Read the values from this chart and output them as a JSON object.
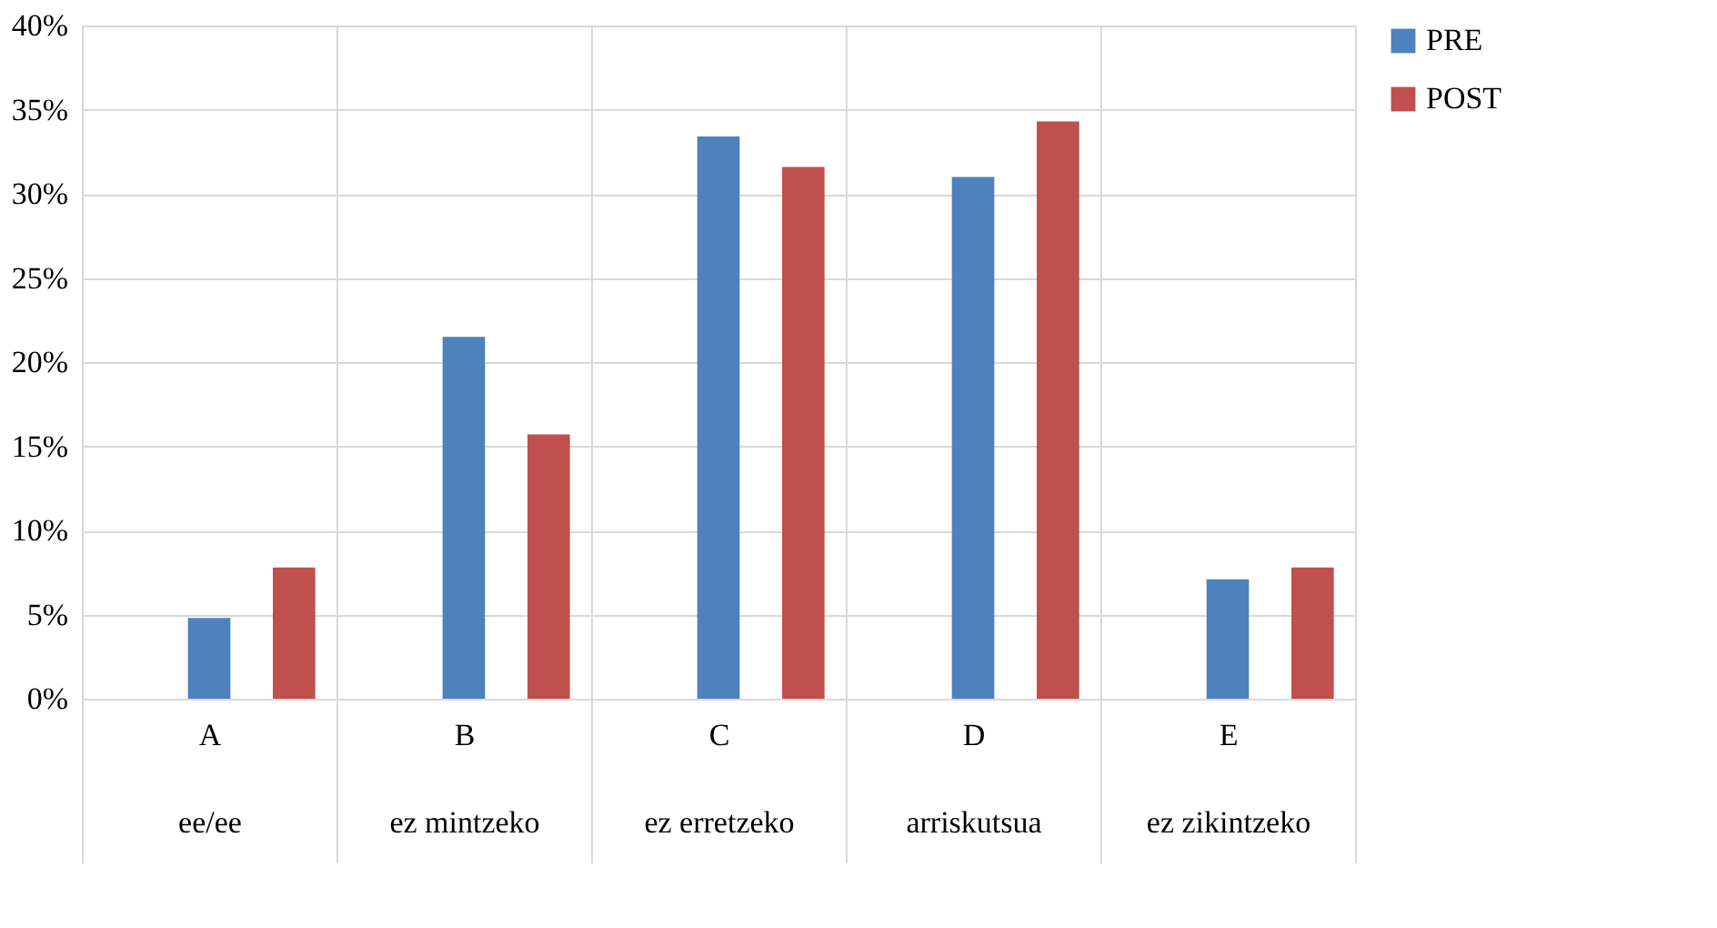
{
  "chart_data": {
    "type": "bar",
    "categories": [
      "A\nee/ee",
      "B\nez mintzeko",
      "C\nez erretzeko",
      "D\narriskutsua",
      "E\nez zikintzeko"
    ],
    "series": [
      {
        "name": "PRE",
        "color": "#4f81bd",
        "values": [
          4.8,
          21.5,
          33.4,
          31.0,
          7.1
        ]
      },
      {
        "name": "POST",
        "color": "#c0504d",
        "values": [
          7.8,
          15.7,
          31.6,
          34.3,
          7.8
        ]
      }
    ],
    "ylim": [
      0,
      40
    ],
    "yticks": [
      {
        "value": 0,
        "label": "0%"
      },
      {
        "value": 5,
        "label": "5%"
      },
      {
        "value": 10,
        "label": "10%"
      },
      {
        "value": 15,
        "label": "15%"
      },
      {
        "value": 20,
        "label": "20%"
      },
      {
        "value": 25,
        "label": "25%"
      },
      {
        "value": 30,
        "label": "30%"
      },
      {
        "value": 35,
        "label": "35%"
      },
      {
        "value": 40,
        "label": "40%"
      }
    ],
    "grid": "y",
    "legend": "right"
  }
}
